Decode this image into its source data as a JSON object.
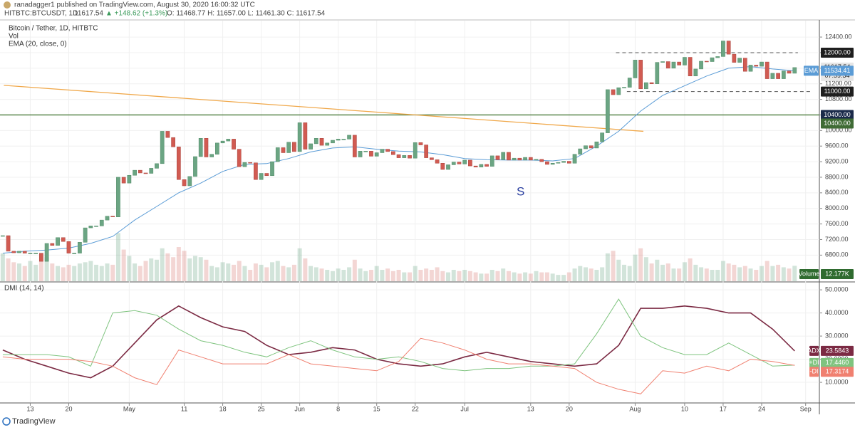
{
  "header": {
    "author_line": "ranadagger1 published on TradingView.com, August 30, 2020 16:00:32 UTC",
    "symbol": "HITBTC:BTCUSDT, 1D",
    "price": "11617.54",
    "change": "▲ +148.62 (+1.3%)",
    "ohlc": "O: 11468.77 H: 11657.00 L: 11461.30 C: 11617.54"
  },
  "footer": {
    "brand": "TradingView"
  },
  "chart_data": [
    {
      "type": "candlestick",
      "title": "Bitcoin / Tether, 1D, HITBTC",
      "volume_legend": "Vol",
      "ema_legend": "EMA (20, close, 0)",
      "up_color": "#6ba583",
      "down_color": "#d15b52",
      "grid": true,
      "xlim": [
        98.5,
        247.5
      ],
      "ylim": [
        6130,
        12840
      ],
      "yticks": [
        {
          "value": 6800,
          "label": "6800.00"
        },
        {
          "value": 7200,
          "label": "7200.00"
        },
        {
          "value": 7600,
          "label": "7600.00"
        },
        {
          "value": 8000,
          "label": "8000.00"
        },
        {
          "value": 8400,
          "label": "8400.00"
        },
        {
          "value": 8800,
          "label": "8800.00"
        },
        {
          "value": 9200,
          "label": "9200.00"
        },
        {
          "value": 9600,
          "label": "9600.00"
        },
        {
          "value": 10000,
          "label": "10000.00"
        },
        {
          "value": 10400,
          "label": "10400.00"
        },
        {
          "value": 10800,
          "label": "10800.00"
        },
        {
          "value": 11200,
          "label": "11200.00"
        },
        {
          "value": 11600,
          "label": "11600.00"
        },
        {
          "value": 12000,
          "label": "12000.00"
        },
        {
          "value": 12400,
          "label": "12400.00"
        }
      ],
      "x": [
        99,
        100,
        101,
        102,
        103,
        104,
        105,
        106,
        107,
        108,
        109,
        110,
        111,
        112,
        113,
        114,
        115,
        116,
        117,
        118,
        119,
        120,
        121,
        122,
        123,
        124,
        125,
        126,
        127,
        128,
        129,
        130,
        131,
        132,
        133,
        134,
        135,
        136,
        137,
        138,
        139,
        140,
        141,
        142,
        143,
        144,
        145,
        146,
        147,
        148,
        149,
        150,
        151,
        152,
        153,
        154,
        155,
        156,
        157,
        158,
        159,
        160,
        161,
        162,
        163,
        164,
        165,
        166,
        167,
        168,
        169,
        170,
        171,
        172,
        173,
        174,
        175,
        176,
        177,
        178,
        179,
        180,
        181,
        182,
        183,
        184,
        185,
        186,
        187,
        188,
        189,
        190,
        191,
        192,
        193,
        194,
        195,
        196,
        197,
        198,
        199,
        200,
        201,
        202,
        203,
        204,
        205,
        206,
        207,
        208,
        209,
        210,
        211,
        212,
        213,
        214,
        215,
        216,
        217,
        218,
        219,
        220,
        221,
        222,
        223,
        224,
        225,
        226,
        227,
        228,
        229,
        230,
        231,
        232,
        233,
        234,
        235,
        236,
        237,
        238,
        239,
        240,
        241,
        242,
        243
      ],
      "values": [
        7300,
        6900,
        6860,
        6900,
        6850,
        6850,
        6850,
        6640,
        7100,
        7050,
        7250,
        7150,
        6850,
        6850,
        7130,
        7500,
        7550,
        7550,
        7700,
        7800,
        7780,
        8800,
        8650,
        8850,
        8980,
        8910,
        8900,
        9030,
        9150,
        9980,
        9820,
        9580,
        8740,
        8580,
        8820,
        9330,
        9800,
        9320,
        9390,
        9680,
        9730,
        9780,
        9520,
        9070,
        9180,
        9170,
        8740,
        8900,
        8840,
        9200,
        9560,
        9430,
        9700,
        9460,
        10200,
        9520,
        9660,
        9800,
        9620,
        9680,
        9750,
        9780,
        9780,
        9880,
        9320,
        9470,
        9470,
        9340,
        9430,
        9520,
        9460,
        9380,
        9300,
        9360,
        9290,
        9690,
        9630,
        9300,
        9250,
        9160,
        9000,
        9120,
        9190,
        9140,
        9240,
        9090,
        9060,
        9130,
        9080,
        9350,
        9250,
        9440,
        9240,
        9290,
        9240,
        9310,
        9240,
        9260,
        9200,
        9130,
        9160,
        9180,
        9210,
        9160,
        9390,
        9530,
        9610,
        9550,
        9710,
        9940,
        11050,
        10920,
        11100,
        11110,
        11350,
        11810,
        11070,
        11230,
        11200,
        11750,
        11770,
        11600,
        11760,
        11680,
        11880,
        11400,
        11580,
        11780,
        11770,
        11870,
        11900,
        12300,
        11960,
        11750,
        11860,
        11520,
        11680,
        11650,
        11760,
        11330,
        11470,
        11330,
        11530,
        11470,
        11617.54
      ],
      "countdown": "07:59:34",
      "volume": {
        "name": "Volume",
        "ylim": [
          0,
          45
        ],
        "values": [
          22,
          18,
          15,
          14,
          12,
          16,
          13,
          20,
          19,
          14,
          12,
          11,
          13,
          12,
          14,
          15,
          16,
          13,
          12,
          14,
          13,
          38,
          25,
          20,
          14,
          12,
          16,
          18,
          17,
          26,
          22,
          19,
          27,
          24,
          18,
          20,
          19,
          17,
          12,
          11,
          15,
          14,
          13,
          16,
          12,
          9,
          14,
          13,
          11,
          15,
          16,
          12,
          11,
          13,
          26,
          18,
          12,
          11,
          10,
          9,
          8,
          10,
          9,
          11,
          17,
          10,
          8,
          9,
          12,
          9,
          10,
          8,
          9,
          7,
          7,
          12,
          9,
          10,
          9,
          11,
          8,
          7,
          9,
          8,
          9,
          8,
          7,
          6,
          6,
          9,
          8,
          10,
          8,
          7,
          6,
          7,
          6,
          8,
          7,
          7,
          6,
          5,
          5,
          7,
          10,
          12,
          11,
          10,
          9,
          11,
          22,
          24,
          17,
          13,
          12,
          21,
          26,
          19,
          14,
          17,
          13,
          14,
          10,
          10,
          15,
          18,
          13,
          11,
          10,
          9,
          9,
          16,
          14,
          13,
          11,
          12,
          10,
          9,
          12,
          16,
          12,
          13,
          11,
          10,
          12.177
        ],
        "value_labels": [
          null,
          null,
          null,
          null,
          null,
          null,
          null,
          null,
          null,
          null,
          null,
          null,
          null,
          null,
          null,
          null,
          null,
          null,
          null,
          null,
          null,
          null,
          null,
          null,
          null,
          null,
          null,
          null,
          null,
          null,
          null,
          null,
          null,
          null,
          null,
          null,
          null,
          null,
          null,
          null,
          null,
          null,
          null,
          null,
          null,
          null,
          null,
          null,
          null,
          null,
          null,
          null,
          null,
          null,
          null,
          null,
          null,
          null,
          null,
          null,
          null,
          null,
          null,
          null,
          null,
          null,
          null,
          null,
          null,
          null,
          null,
          null,
          null,
          null,
          null,
          null,
          null,
          null,
          null,
          null,
          null,
          null,
          null,
          null,
          null,
          null,
          null,
          null,
          null,
          null,
          null,
          null,
          null,
          null,
          null,
          null,
          null,
          null,
          null,
          null,
          null,
          null,
          null,
          null,
          null,
          null,
          null,
          null,
          null,
          null,
          null,
          null,
          null,
          null,
          null,
          null,
          null,
          null,
          null,
          null,
          null,
          null,
          null,
          null,
          null,
          null,
          null,
          null,
          null,
          null,
          null,
          null,
          null,
          null,
          null,
          null,
          null,
          null,
          null,
          null,
          null,
          null,
          null,
          null,
          "12.177K"
        ]
      },
      "ema": {
        "name": "EMA",
        "color": "#5b9cd6",
        "x": [
          99,
          103,
          107,
          111,
          115,
          119,
          123,
          127,
          131,
          135,
          139,
          143,
          147,
          151,
          155,
          159,
          163,
          167,
          171,
          175,
          179,
          183,
          187,
          191,
          195,
          199,
          203,
          207,
          211,
          215,
          219,
          223,
          227,
          231,
          235,
          239,
          243
        ],
        "values": [
          6850,
          6900,
          6930,
          6980,
          7100,
          7280,
          7700,
          8050,
          8400,
          8650,
          8950,
          9130,
          9150,
          9280,
          9450,
          9550,
          9580,
          9520,
          9470,
          9450,
          9380,
          9280,
          9250,
          9240,
          9240,
          9220,
          9280,
          9600,
          9980,
          10500,
          10900,
          11150,
          11400,
          11600,
          11640,
          11580,
          11534.41
        ]
      },
      "levels": [
        {
          "value": 10400,
          "label": "10400.00",
          "color": "#4a7a3a",
          "dashed": false
        },
        {
          "value": 12000,
          "label": "12000.00",
          "color": "#555555",
          "dashed": true,
          "x": [
            210.5,
            243.6
          ]
        },
        {
          "value": 11000,
          "label": "11000.00",
          "color": "#555555",
          "dashed": true,
          "x": [
            212.5,
            246
          ]
        }
      ],
      "trendlines": [
        {
          "x": [
            99.2,
            215.5
          ],
          "y": [
            11160,
            9980
          ],
          "color": "#f0a84a"
        }
      ],
      "annotation": "S"
    },
    {
      "type": "line",
      "title": "DMI (14, 14)",
      "grid": true,
      "xlim": [
        98.5,
        247.5
      ],
      "ylim": [
        1.4,
        52.8
      ],
      "xticks": [
        {
          "value": 104,
          "label": "13"
        },
        {
          "value": 111,
          "label": "20"
        },
        {
          "value": 122,
          "label": "May"
        },
        {
          "value": 132,
          "label": "11"
        },
        {
          "value": 139,
          "label": "18"
        },
        {
          "value": 146,
          "label": "25"
        },
        {
          "value": 153,
          "label": "Jun"
        },
        {
          "value": 160,
          "label": "8"
        },
        {
          "value": 167,
          "label": "15"
        },
        {
          "value": 174,
          "label": "22"
        },
        {
          "value": 183,
          "label": "Jul"
        },
        {
          "value": 195,
          "label": "13"
        },
        {
          "value": 202,
          "label": "20"
        },
        {
          "value": 214,
          "label": "Aug"
        },
        {
          "value": 223,
          "label": "10"
        },
        {
          "value": 230,
          "label": "17"
        },
        {
          "value": 237,
          "label": "24"
        },
        {
          "value": 245,
          "label": "Sep"
        }
      ],
      "yticks": [
        {
          "value": 10,
          "label": "10.0000"
        },
        {
          "value": 20,
          "label": "20.0000"
        },
        {
          "value": 30,
          "label": "30.0000"
        },
        {
          "value": 40,
          "label": "40.0000"
        },
        {
          "value": 50,
          "label": "50.0000"
        }
      ],
      "x": [
        99,
        103,
        107,
        111,
        115,
        119,
        123,
        127,
        131,
        135,
        139,
        143,
        147,
        151,
        155,
        159,
        163,
        167,
        171,
        175,
        179,
        183,
        187,
        191,
        195,
        199,
        203,
        207,
        211,
        215,
        219,
        223,
        227,
        231,
        235,
        239,
        243
      ],
      "series": [
        {
          "name": "ADX",
          "color": "#7b2a43",
          "values": [
            24,
            20,
            17,
            14,
            12,
            17,
            27,
            37,
            43,
            38,
            34,
            32,
            26,
            22,
            23,
            25,
            24,
            20,
            18,
            17,
            18,
            21,
            23,
            21,
            19,
            18,
            17,
            18,
            26,
            42,
            42,
            43,
            42,
            40,
            40,
            33,
            23.5843
          ]
        },
        {
          "name": "+DI",
          "color": "#7fc47f",
          "values": [
            22,
            22,
            22,
            21,
            17,
            40,
            41,
            39,
            33,
            28,
            26,
            23,
            21,
            25,
            28,
            24,
            21,
            20,
            21,
            19,
            16,
            15,
            16,
            16,
            17,
            17,
            18,
            31,
            46,
            30,
            25,
            22,
            22,
            27,
            22,
            17,
            17.446
          ],
          "value_labels": [
            null,
            null,
            null,
            null,
            null,
            null,
            null,
            null,
            null,
            null,
            null,
            null,
            null,
            null,
            null,
            null,
            null,
            null,
            null,
            null,
            null,
            null,
            null,
            null,
            null,
            null,
            null,
            null,
            null,
            null,
            null,
            null,
            null,
            null,
            null,
            null,
            "17.4460"
          ]
        },
        {
          "name": "-DI",
          "color": "#f08070",
          "values": [
            21,
            20,
            20,
            20,
            19,
            17,
            12,
            9,
            24,
            21,
            18,
            18,
            18,
            22,
            18,
            17,
            16,
            15,
            19,
            29,
            27,
            24,
            20,
            18,
            18,
            17,
            16,
            10,
            7,
            5,
            15,
            14,
            17,
            15,
            20,
            19,
            17.3174
          ]
        }
      ]
    }
  ]
}
